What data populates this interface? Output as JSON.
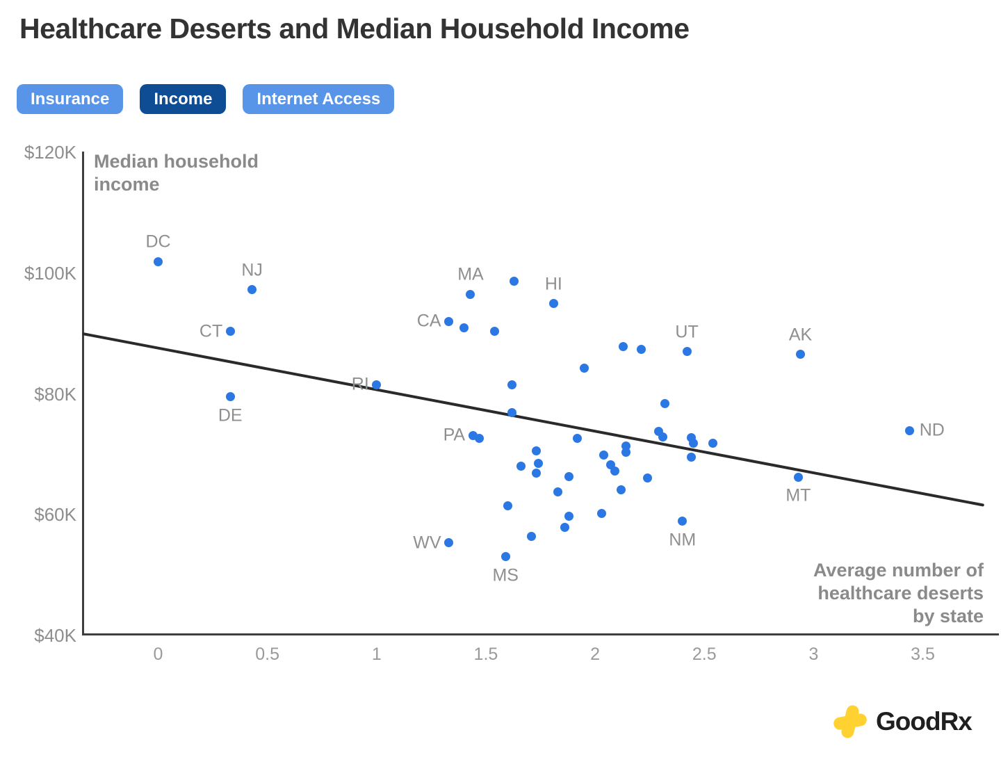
{
  "title": "Healthcare Deserts and Median Household Income",
  "buttons": [
    {
      "id": "insurance",
      "label": "Insurance",
      "selected": false
    },
    {
      "id": "income",
      "label": "Income",
      "selected": true
    },
    {
      "id": "internet-access",
      "label": "Internet Access",
      "selected": false
    }
  ],
  "colors": {
    "dot_blue": "#2b77e3",
    "button_blue": "#5895e8",
    "button_selected_navy": "#0e4c94",
    "trend_line": "#2a2a2a",
    "axis": "#3e3e3e",
    "label_gray": "#8f8f8f",
    "logo_yellow": "#ffd232"
  },
  "chart_data": {
    "type": "scatter",
    "y_axis_label": "Median household\nincome",
    "x_axis_label": "Average number of\nhealthcare deserts\nby state",
    "x_tick_labels": [
      "0",
      "0.5",
      "1",
      "1.5",
      "2",
      "2.5",
      "3",
      "3.5"
    ],
    "x_tick_values": [
      0,
      0.5,
      1,
      1.5,
      2,
      2.5,
      3,
      3.5
    ],
    "y_tick_labels": [
      "$120K",
      "$100K",
      "$80K",
      "$60K",
      "$40K"
    ],
    "y_tick_values": [
      120,
      100,
      80,
      60,
      40
    ],
    "xlim": [
      -0.35,
      3.8
    ],
    "ylim": [
      40,
      120
    ],
    "grid": false,
    "legend": "none",
    "units": "y values are median household income in thousands of USD, x values are average number of healthcare deserts by state",
    "trendline": {
      "x1": -0.345,
      "y1": 89.8,
      "x2": 3.78,
      "y2": 61.4
    },
    "points": [
      {
        "state": "DC",
        "label_pos": "above",
        "x": 0.0,
        "y": 101.8
      },
      {
        "state": "NJ",
        "label_pos": "above",
        "x": 0.43,
        "y": 97.1
      },
      {
        "state": "CT",
        "label_pos": "left",
        "x": 0.33,
        "y": 90.2
      },
      {
        "state": "DE",
        "label_pos": "below",
        "x": 0.33,
        "y": 79.4
      },
      {
        "state": "RI",
        "label_pos": "left",
        "x": 1.0,
        "y": 81.4
      },
      {
        "state": "CA",
        "label_pos": "left",
        "x": 1.33,
        "y": 91.9
      },
      {
        "state": "MA",
        "label_pos": "above",
        "x": 1.43,
        "y": 96.4
      },
      {
        "state": "HI",
        "label_pos": "above",
        "x": 1.81,
        "y": 94.8
      },
      {
        "state": "PA",
        "label_pos": "left",
        "x": 1.44,
        "y": 73.0
      },
      {
        "state": "WV",
        "label_pos": "left",
        "x": 1.33,
        "y": 55.2
      },
      {
        "state": "MS",
        "label_pos": "below",
        "x": 1.59,
        "y": 52.9
      },
      {
        "state": "UT",
        "label_pos": "above",
        "x": 2.42,
        "y": 86.9
      },
      {
        "state": "NM",
        "label_pos": "below",
        "x": 2.4,
        "y": 58.8
      },
      {
        "state": "AK",
        "label_pos": "above",
        "x": 2.94,
        "y": 86.4
      },
      {
        "state": "MT",
        "label_pos": "below",
        "x": 2.93,
        "y": 66.1
      },
      {
        "state": "ND",
        "label_pos": "right",
        "x": 3.44,
        "y": 73.8
      },
      {
        "x": 1.4,
        "y": 90.8
      },
      {
        "x": 1.54,
        "y": 90.2
      },
      {
        "x": 1.63,
        "y": 98.5
      },
      {
        "x": 2.13,
        "y": 87.7
      },
      {
        "x": 2.21,
        "y": 87.2
      },
      {
        "x": 1.95,
        "y": 84.2
      },
      {
        "x": 1.62,
        "y": 81.4
      },
      {
        "x": 2.32,
        "y": 78.3
      },
      {
        "x": 1.62,
        "y": 76.8
      },
      {
        "x": 1.47,
        "y": 72.5
      },
      {
        "x": 1.92,
        "y": 72.5
      },
      {
        "x": 2.29,
        "y": 73.7
      },
      {
        "x": 2.31,
        "y": 72.8
      },
      {
        "x": 2.44,
        "y": 72.6
      },
      {
        "x": 2.45,
        "y": 71.7
      },
      {
        "x": 2.54,
        "y": 71.7
      },
      {
        "x": 1.73,
        "y": 70.4
      },
      {
        "x": 2.04,
        "y": 69.8
      },
      {
        "x": 2.14,
        "y": 71.2
      },
      {
        "x": 2.14,
        "y": 70.2
      },
      {
        "x": 2.44,
        "y": 69.4
      },
      {
        "x": 2.07,
        "y": 68.2
      },
      {
        "x": 2.09,
        "y": 67.1
      },
      {
        "x": 1.66,
        "y": 67.9
      },
      {
        "x": 1.74,
        "y": 68.4
      },
      {
        "x": 1.73,
        "y": 66.8
      },
      {
        "x": 1.88,
        "y": 66.2
      },
      {
        "x": 2.24,
        "y": 65.9
      },
      {
        "x": 1.83,
        "y": 63.6
      },
      {
        "x": 2.12,
        "y": 64.0
      },
      {
        "x": 1.6,
        "y": 61.3
      },
      {
        "x": 2.03,
        "y": 60.1
      },
      {
        "x": 1.88,
        "y": 59.6
      },
      {
        "x": 1.86,
        "y": 57.8
      },
      {
        "x": 1.71,
        "y": 56.3
      }
    ]
  },
  "branding": {
    "logo_text": "GoodRx"
  }
}
